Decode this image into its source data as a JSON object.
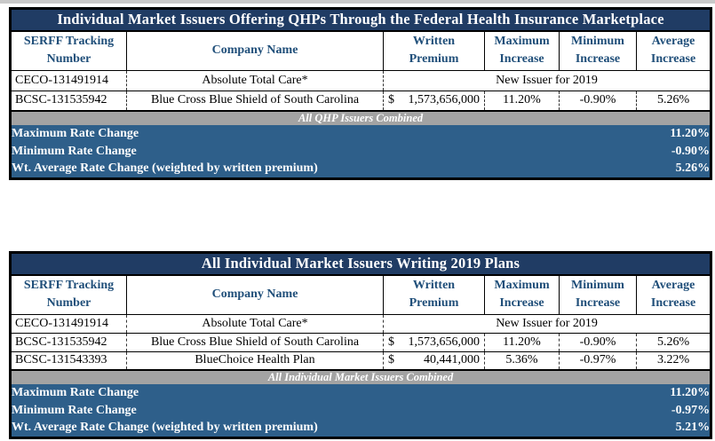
{
  "colors": {
    "title_bg": "#203C64",
    "header_text": "#1F4E79",
    "band_bg": "#A3A3A3",
    "summary_bg": "#2E5F8A"
  },
  "tables": [
    {
      "id": "qhp-issuers",
      "title": "Individual Market Issuers Offering QHPs Through the Federal Health Insurance Marketplace",
      "headers": [
        {
          "lines": [
            "SERFF Tracking",
            "Number"
          ]
        },
        {
          "lines": [
            "Company Name"
          ]
        },
        {
          "lines": [
            "Written",
            "Premium"
          ]
        },
        {
          "lines": [
            "Maximum",
            "Increase"
          ]
        },
        {
          "lines": [
            "Minimum",
            "Increase"
          ]
        },
        {
          "lines": [
            "Average",
            "Increase"
          ]
        }
      ],
      "rows": [
        {
          "serff": "CECO-131491914",
          "company": "Absolute Total Care*",
          "note": "New Issuer for 2019"
        },
        {
          "serff": "BCSC-131535942",
          "company": "Blue Cross Blue Shield of South Carolina",
          "currency": "$",
          "premium": "1,573,656,000",
          "max_increase": "11.20%",
          "min_increase": "-0.90%",
          "avg_increase": "5.26%"
        }
      ],
      "band_label": "All QHP Issuers Combined",
      "summary": [
        {
          "label": "Maximum Rate Change",
          "value": "11.20%"
        },
        {
          "label": "Minimum Rate Change",
          "value": "-0.90%"
        },
        {
          "label": "Wt. Average Rate Change (weighted by written premium)",
          "value": "5.26%"
        }
      ]
    },
    {
      "id": "all-individual-issuers",
      "title": "All Individual Market Issuers Writing 2019 Plans",
      "headers": [
        {
          "lines": [
            "SERFF Tracking",
            "Number"
          ]
        },
        {
          "lines": [
            "Company Name"
          ]
        },
        {
          "lines": [
            "Written",
            "Premium"
          ]
        },
        {
          "lines": [
            "Maximum",
            "Increase"
          ]
        },
        {
          "lines": [
            "Minimum",
            "Increase"
          ]
        },
        {
          "lines": [
            "Average",
            "Increase"
          ]
        }
      ],
      "rows": [
        {
          "serff": "CECO-131491914",
          "company": "Absolute Total Care*",
          "note": "New Issuer for 2019"
        },
        {
          "serff": "BCSC-131535942",
          "company": "Blue Cross Blue Shield of South Carolina",
          "currency": "$",
          "premium": "1,573,656,000",
          "max_increase": "11.20%",
          "min_increase": "-0.90%",
          "avg_increase": "5.26%"
        },
        {
          "serff": "BCSC-131543393",
          "company": "BlueChoice Health Plan",
          "currency": "$",
          "premium": "40,441,000",
          "max_increase": "5.36%",
          "min_increase": "-0.97%",
          "avg_increase": "3.22%"
        }
      ],
      "band_label": "All Individual Market Issuers Combined",
      "summary": [
        {
          "label": "Maximum Rate Change",
          "value": "11.20%"
        },
        {
          "label": "Minimum Rate Change",
          "value": "-0.97%"
        },
        {
          "label": "Wt. Average Rate Change (weighted by written premium)",
          "value": "5.21%"
        }
      ]
    }
  ]
}
